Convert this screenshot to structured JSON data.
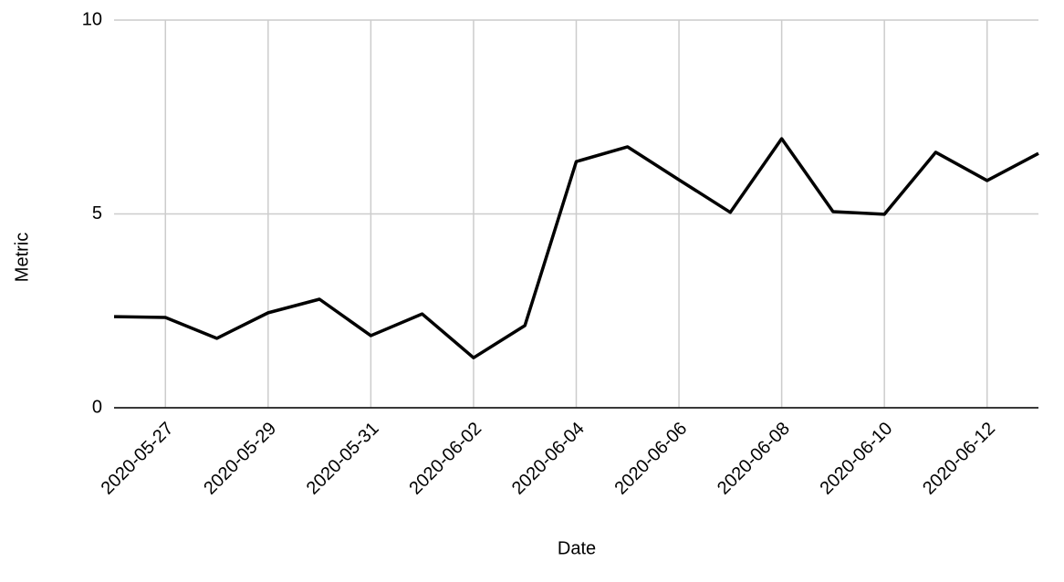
{
  "chart_data": {
    "type": "line",
    "x_label": "Date",
    "y_label": "Metric",
    "x": [
      "2020-05-26",
      "2020-05-27",
      "2020-05-28",
      "2020-05-29",
      "2020-05-30",
      "2020-05-31",
      "2020-06-01",
      "2020-06-02",
      "2020-06-03",
      "2020-06-04",
      "2020-06-05",
      "2020-06-06",
      "2020-06-07",
      "2020-06-08",
      "2020-06-09",
      "2020-06-10",
      "2020-06-11",
      "2020-06-12",
      "2020-06-13"
    ],
    "values": [
      2.35,
      2.33,
      1.79,
      2.45,
      2.8,
      1.86,
      2.42,
      1.29,
      2.12,
      6.35,
      6.73,
      5.88,
      5.04,
      6.94,
      5.06,
      4.99,
      6.59,
      5.86,
      6.56
    ],
    "color": "#000000",
    "xlim": [
      "2020-05-26",
      "2020-06-13"
    ],
    "xticks": [
      "2020-05-27",
      "2020-05-29",
      "2020-05-31",
      "2020-06-02",
      "2020-06-04",
      "2020-06-06",
      "2020-06-08",
      "2020-06-10",
      "2020-06-12"
    ],
    "ylim": [
      0,
      10
    ],
    "yticks": [
      0,
      5,
      10
    ],
    "grid": true
  }
}
